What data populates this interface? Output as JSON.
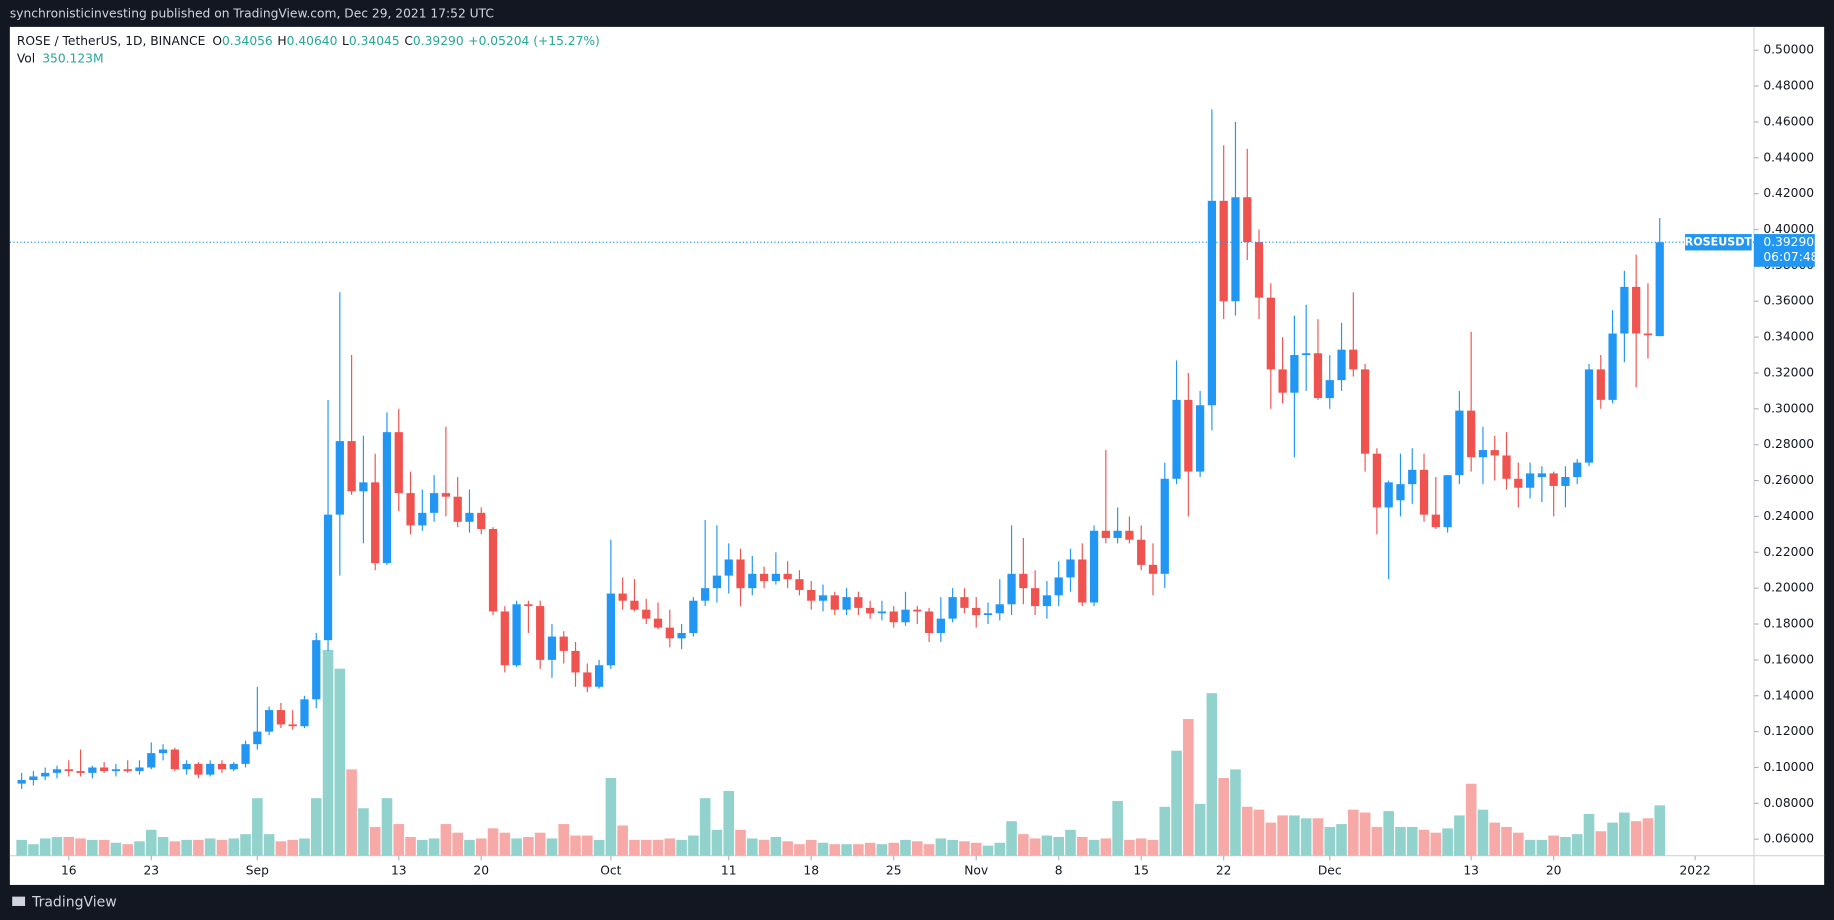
{
  "header": {
    "publisher_line": "synchronisticinvesting published on TradingView.com, Dec 29, 2021 17:52 UTC"
  },
  "chart_data": {
    "type": "candlestick",
    "title": "ROSE / TetherUS, 1D, BINANCE",
    "ohlc_legend": [
      {
        "key": "O",
        "value": "0.34056"
      },
      {
        "key": "H",
        "value": "0.40640"
      },
      {
        "key": "L",
        "value": "0.34045"
      },
      {
        "key": "C",
        "value": "0.39290"
      }
    ],
    "change_label": "+0.05204 (+15.27%)",
    "volume_name": "Vol",
    "volume_value_label": "350.123M",
    "symbol": "ROSEUSDT",
    "last_price_label": "0.39290",
    "countdown": "06:07:48",
    "up_color": "#2196f3",
    "down_color": "#ef5350",
    "volume_up_color": "#92d2cc",
    "volume_down_color": "#f7a9a7",
    "x": [
      "2021-08-12",
      "2021-08-13",
      "2021-08-14",
      "2021-08-15",
      "2021-08-16",
      "2021-08-17",
      "2021-08-18",
      "2021-08-19",
      "2021-08-20",
      "2021-08-21",
      "2021-08-22",
      "2021-08-23",
      "2021-08-24",
      "2021-08-25",
      "2021-08-26",
      "2021-08-27",
      "2021-08-28",
      "2021-08-29",
      "2021-08-30",
      "2021-08-31",
      "2021-09-01",
      "2021-09-02",
      "2021-09-03",
      "2021-09-04",
      "2021-09-05",
      "2021-09-06",
      "2021-09-07",
      "2021-09-08",
      "2021-09-09",
      "2021-09-10",
      "2021-09-11",
      "2021-09-12",
      "2021-09-13",
      "2021-09-14",
      "2021-09-15",
      "2021-09-16",
      "2021-09-17",
      "2021-09-18",
      "2021-09-19",
      "2021-09-20",
      "2021-09-21",
      "2021-09-22",
      "2021-09-23",
      "2021-09-24",
      "2021-09-25",
      "2021-09-26",
      "2021-09-27",
      "2021-09-28",
      "2021-09-29",
      "2021-09-30",
      "2021-10-01",
      "2021-10-02",
      "2021-10-03",
      "2021-10-04",
      "2021-10-05",
      "2021-10-06",
      "2021-10-07",
      "2021-10-08",
      "2021-10-09",
      "2021-10-10",
      "2021-10-11",
      "2021-10-12",
      "2021-10-13",
      "2021-10-14",
      "2021-10-15",
      "2021-10-16",
      "2021-10-17",
      "2021-10-18",
      "2021-10-19",
      "2021-10-20",
      "2021-10-21",
      "2021-10-22",
      "2021-10-23",
      "2021-10-24",
      "2021-10-25",
      "2021-10-26",
      "2021-10-27",
      "2021-10-28",
      "2021-10-29",
      "2021-10-30",
      "2021-10-31",
      "2021-11-01",
      "2021-11-02",
      "2021-11-03",
      "2021-11-04",
      "2021-11-05",
      "2021-11-06",
      "2021-11-07",
      "2021-11-08",
      "2021-11-09",
      "2021-11-10",
      "2021-11-11",
      "2021-11-12",
      "2021-11-13",
      "2021-11-14",
      "2021-11-15",
      "2021-11-16",
      "2021-11-17",
      "2021-11-18",
      "2021-11-19",
      "2021-11-20",
      "2021-11-21",
      "2021-11-22",
      "2021-11-23",
      "2021-11-24",
      "2021-11-25",
      "2021-11-26",
      "2021-11-27",
      "2021-11-28",
      "2021-11-29",
      "2021-11-30",
      "2021-12-01",
      "2021-12-02",
      "2021-12-03",
      "2021-12-04",
      "2021-12-05",
      "2021-12-06",
      "2021-12-07",
      "2021-12-08",
      "2021-12-09",
      "2021-12-10",
      "2021-12-11",
      "2021-12-12",
      "2021-12-13",
      "2021-12-14",
      "2021-12-15",
      "2021-12-16",
      "2021-12-17",
      "2021-12-18",
      "2021-12-19",
      "2021-12-20",
      "2021-12-21",
      "2021-12-22",
      "2021-12-23",
      "2021-12-24",
      "2021-12-25",
      "2021-12-26",
      "2021-12-27",
      "2021-12-28",
      "2021-12-29"
    ],
    "open": [
      0.091,
      0.093,
      0.095,
      0.097,
      0.099,
      0.098,
      0.097,
      0.1,
      0.098,
      0.099,
      0.098,
      0.1,
      0.108,
      0.11,
      0.099,
      0.102,
      0.096,
      0.102,
      0.099,
      0.102,
      0.113,
      0.12,
      0.132,
      0.124,
      0.123,
      0.138,
      0.171,
      0.241,
      0.282,
      0.254,
      0.259,
      0.214,
      0.287,
      0.253,
      0.235,
      0.242,
      0.253,
      0.251,
      0.237,
      0.242,
      0.233,
      0.187,
      0.157,
      0.191,
      0.19,
      0.16,
      0.173,
      0.165,
      0.153,
      0.145,
      0.157,
      0.197,
      0.193,
      0.188,
      0.183,
      0.178,
      0.172,
      0.175,
      0.193,
      0.2,
      0.207,
      0.216,
      0.2,
      0.208,
      0.204,
      0.208,
      0.205,
      0.199,
      0.193,
      0.196,
      0.188,
      0.195,
      0.189,
      0.186,
      0.187,
      0.181,
      0.188,
      0.187,
      0.175,
      0.183,
      0.195,
      0.189,
      0.185,
      0.186,
      0.191,
      0.208,
      0.2,
      0.19,
      0.196,
      0.206,
      0.216,
      0.192,
      0.232,
      0.228,
      0.232,
      0.227,
      0.213,
      0.208,
      0.261,
      0.305,
      0.265,
      0.302,
      0.416,
      0.36,
      0.418,
      0.393,
      0.362,
      0.322,
      0.309,
      0.33,
      0.331,
      0.306,
      0.316,
      0.333,
      0.322,
      0.275,
      0.245,
      0.249,
      0.258,
      0.266,
      0.241,
      0.234,
      0.263,
      0.299,
      0.273,
      0.277,
      0.274,
      0.261,
      0.256,
      0.262,
      0.264,
      0.257,
      0.262,
      0.27,
      0.322,
      0.305,
      0.342,
      0.368,
      0.342,
      0.34056
    ],
    "high": [
      0.097,
      0.098,
      0.1,
      0.101,
      0.104,
      0.11,
      0.101,
      0.103,
      0.102,
      0.104,
      0.104,
      0.114,
      0.113,
      0.111,
      0.104,
      0.103,
      0.104,
      0.104,
      0.103,
      0.115,
      0.145,
      0.134,
      0.136,
      0.132,
      0.14,
      0.175,
      0.305,
      0.365,
      0.33,
      0.285,
      0.275,
      0.298,
      0.3,
      0.265,
      0.255,
      0.263,
      0.29,
      0.262,
      0.255,
      0.245,
      0.234,
      0.19,
      0.193,
      0.193,
      0.193,
      0.18,
      0.176,
      0.17,
      0.158,
      0.16,
      0.227,
      0.206,
      0.205,
      0.194,
      0.192,
      0.188,
      0.18,
      0.195,
      0.238,
      0.235,
      0.225,
      0.222,
      0.218,
      0.212,
      0.22,
      0.215,
      0.21,
      0.204,
      0.202,
      0.198,
      0.2,
      0.198,
      0.193,
      0.193,
      0.19,
      0.198,
      0.19,
      0.189,
      0.195,
      0.2,
      0.2,
      0.195,
      0.192,
      0.205,
      0.235,
      0.228,
      0.21,
      0.204,
      0.215,
      0.222,
      0.225,
      0.235,
      0.277,
      0.245,
      0.24,
      0.235,
      0.225,
      0.27,
      0.327,
      0.32,
      0.31,
      0.467,
      0.447,
      0.46,
      0.445,
      0.4,
      0.37,
      0.34,
      0.352,
      0.358,
      0.35,
      0.33,
      0.348,
      0.365,
      0.325,
      0.278,
      0.26,
      0.275,
      0.278,
      0.275,
      0.262,
      0.263,
      0.31,
      0.343,
      0.29,
      0.285,
      0.287,
      0.27,
      0.27,
      0.268,
      0.265,
      0.268,
      0.272,
      0.325,
      0.33,
      0.355,
      0.377,
      0.386,
      0.37,
      0.4064
    ],
    "low": [
      0.088,
      0.09,
      0.093,
      0.094,
      0.095,
      0.095,
      0.094,
      0.097,
      0.095,
      0.097,
      0.096,
      0.099,
      0.104,
      0.098,
      0.096,
      0.094,
      0.095,
      0.097,
      0.098,
      0.1,
      0.11,
      0.118,
      0.122,
      0.121,
      0.122,
      0.133,
      0.165,
      0.207,
      0.252,
      0.225,
      0.21,
      0.213,
      0.243,
      0.23,
      0.232,
      0.237,
      0.24,
      0.234,
      0.231,
      0.23,
      0.185,
      0.153,
      0.156,
      0.175,
      0.155,
      0.15,
      0.158,
      0.145,
      0.142,
      0.144,
      0.155,
      0.188,
      0.187,
      0.18,
      0.177,
      0.167,
      0.166,
      0.173,
      0.19,
      0.192,
      0.197,
      0.19,
      0.196,
      0.2,
      0.202,
      0.2,
      0.196,
      0.188,
      0.187,
      0.185,
      0.185,
      0.185,
      0.183,
      0.182,
      0.178,
      0.179,
      0.18,
      0.17,
      0.17,
      0.181,
      0.186,
      0.178,
      0.18,
      0.182,
      0.185,
      0.191,
      0.185,
      0.183,
      0.19,
      0.198,
      0.19,
      0.19,
      0.225,
      0.225,
      0.225,
      0.21,
      0.196,
      0.2,
      0.258,
      0.24,
      0.262,
      0.288,
      0.35,
      0.352,
      0.383,
      0.35,
      0.3,
      0.303,
      0.273,
      0.31,
      0.305,
      0.3,
      0.31,
      0.318,
      0.265,
      0.23,
      0.205,
      0.24,
      0.247,
      0.237,
      0.233,
      0.231,
      0.258,
      0.265,
      0.258,
      0.26,
      0.255,
      0.245,
      0.25,
      0.248,
      0.24,
      0.245,
      0.258,
      0.268,
      0.3,
      0.303,
      0.326,
      0.312,
      0.328,
      0.34045
    ],
    "close": [
      0.093,
      0.095,
      0.097,
      0.099,
      0.098,
      0.097,
      0.1,
      0.098,
      0.099,
      0.098,
      0.1,
      0.108,
      0.11,
      0.099,
      0.102,
      0.096,
      0.102,
      0.099,
      0.102,
      0.113,
      0.12,
      0.132,
      0.124,
      0.123,
      0.138,
      0.171,
      0.241,
      0.282,
      0.254,
      0.259,
      0.214,
      0.287,
      0.253,
      0.235,
      0.242,
      0.253,
      0.251,
      0.237,
      0.242,
      0.233,
      0.187,
      0.157,
      0.191,
      0.19,
      0.16,
      0.173,
      0.165,
      0.153,
      0.145,
      0.157,
      0.197,
      0.193,
      0.188,
      0.183,
      0.178,
      0.172,
      0.175,
      0.193,
      0.2,
      0.207,
      0.216,
      0.2,
      0.208,
      0.204,
      0.208,
      0.205,
      0.199,
      0.193,
      0.196,
      0.188,
      0.195,
      0.189,
      0.186,
      0.187,
      0.181,
      0.188,
      0.187,
      0.175,
      0.183,
      0.195,
      0.189,
      0.185,
      0.186,
      0.191,
      0.208,
      0.2,
      0.19,
      0.196,
      0.206,
      0.216,
      0.192,
      0.232,
      0.228,
      0.232,
      0.227,
      0.213,
      0.208,
      0.261,
      0.305,
      0.265,
      0.302,
      0.416,
      0.36,
      0.418,
      0.393,
      0.362,
      0.322,
      0.309,
      0.33,
      0.331,
      0.306,
      0.316,
      0.333,
      0.322,
      0.275,
      0.245,
      0.259,
      0.258,
      0.266,
      0.241,
      0.234,
      0.263,
      0.299,
      0.273,
      0.277,
      0.274,
      0.261,
      0.256,
      0.264,
      0.264,
      0.257,
      0.262,
      0.27,
      0.322,
      0.305,
      0.342,
      0.368,
      0.342,
      0.341,
      0.3929
    ],
    "volume": [
      110,
      80,
      120,
      130,
      130,
      120,
      110,
      110,
      90,
      80,
      100,
      180,
      130,
      100,
      110,
      110,
      120,
      110,
      120,
      150,
      400,
      150,
      100,
      110,
      120,
      400,
      1430,
      1300,
      600,
      330,
      200,
      400,
      220,
      130,
      110,
      120,
      220,
      160,
      110,
      120,
      190,
      160,
      120,
      130,
      160,
      120,
      220,
      140,
      140,
      110,
      540,
      210,
      110,
      110,
      110,
      120,
      110,
      140,
      400,
      180,
      450,
      180,
      120,
      110,
      130,
      100,
      80,
      110,
      90,
      80,
      80,
      80,
      90,
      80,
      90,
      110,
      100,
      80,
      120,
      110,
      100,
      90,
      70,
      90,
      240,
      150,
      120,
      140,
      130,
      180,
      130,
      110,
      120,
      380,
      110,
      120,
      110,
      340,
      730,
      950,
      360,
      1130,
      540,
      600,
      340,
      320,
      230,
      280,
      280,
      260,
      260,
      200,
      220,
      320,
      300,
      200,
      310,
      200,
      200,
      180,
      160,
      190,
      280,
      500,
      320,
      230,
      200,
      160,
      110,
      110,
      140,
      130,
      150,
      290,
      170,
      230,
      300,
      240,
      260,
      350.123
    ],
    "xlim": [
      "2021-08-11",
      "2022-01-06"
    ],
    "ylim": [
      0.0508,
      0.513
    ],
    "yticks": [
      {
        "value": 0.06,
        "label": "0.06000"
      },
      {
        "value": 0.08,
        "label": "0.08000"
      },
      {
        "value": 0.1,
        "label": "0.10000"
      },
      {
        "value": 0.12,
        "label": "0.12000"
      },
      {
        "value": 0.14,
        "label": "0.14000"
      },
      {
        "value": 0.16,
        "label": "0.16000"
      },
      {
        "value": 0.18,
        "label": "0.18000"
      },
      {
        "value": 0.2,
        "label": "0.20000"
      },
      {
        "value": 0.22,
        "label": "0.22000"
      },
      {
        "value": 0.24,
        "label": "0.24000"
      },
      {
        "value": 0.26,
        "label": "0.26000"
      },
      {
        "value": 0.28,
        "label": "0.28000"
      },
      {
        "value": 0.3,
        "label": "0.30000"
      },
      {
        "value": 0.32,
        "label": "0.32000"
      },
      {
        "value": 0.34,
        "label": "0.34000"
      },
      {
        "value": 0.36,
        "label": "0.36000"
      },
      {
        "value": 0.38,
        "label": "0.38000"
      },
      {
        "value": 0.4,
        "label": "0.40000"
      },
      {
        "value": 0.42,
        "label": "0.42000"
      },
      {
        "value": 0.44,
        "label": "0.44000"
      },
      {
        "value": 0.46,
        "label": "0.46000"
      },
      {
        "value": 0.48,
        "label": "0.48000"
      },
      {
        "value": 0.5,
        "label": "0.50000"
      }
    ],
    "xticks": [
      {
        "value": "2021-08-16",
        "label": "16"
      },
      {
        "value": "2021-08-23",
        "label": "23"
      },
      {
        "value": "2021-09-01",
        "label": "Sep"
      },
      {
        "value": "2021-09-13",
        "label": "13"
      },
      {
        "value": "2021-09-20",
        "label": "20"
      },
      {
        "value": "2021-10-01",
        "label": "Oct"
      },
      {
        "value": "2021-10-11",
        "label": "11"
      },
      {
        "value": "2021-10-18",
        "label": "18"
      },
      {
        "value": "2021-10-25",
        "label": "25"
      },
      {
        "value": "2021-11-01",
        "label": "Nov"
      },
      {
        "value": "2021-11-08",
        "label": "8"
      },
      {
        "value": "2021-11-15",
        "label": "15"
      },
      {
        "value": "2021-11-22",
        "label": "22"
      },
      {
        "value": "2021-12-01",
        "label": "Dec"
      },
      {
        "value": "2021-12-13",
        "label": "13"
      },
      {
        "value": "2021-12-20",
        "label": "20"
      },
      {
        "value": "2022-01-01",
        "label": "2022"
      }
    ]
  },
  "footer": {
    "brand": "TradingView"
  }
}
